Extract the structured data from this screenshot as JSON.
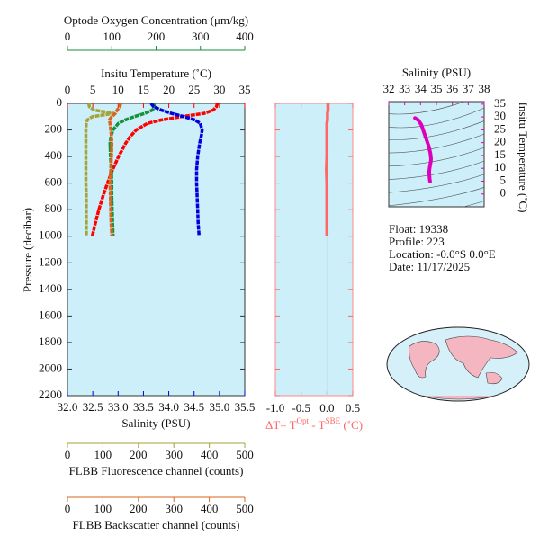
{
  "chart_data": [
    {
      "type": "profile",
      "y_label": "Pressure (decibar)",
      "ylim": [
        2200,
        0
      ],
      "yticks": [
        0,
        200,
        400,
        600,
        800,
        1000,
        1200,
        1400,
        1600,
        1800,
        2000,
        2200
      ],
      "pressure": [
        0,
        25,
        50,
        75,
        100,
        125,
        150,
        200,
        250,
        300,
        400,
        500,
        600,
        700,
        800,
        900,
        1000
      ],
      "series": [
        {
          "name": "Insitu Temperature (˚C)",
          "color": "#ff0000",
          "xlim": [
            0,
            35
          ],
          "xticks": [
            0,
            5,
            10,
            15,
            20,
            25,
            30,
            35
          ],
          "values": [
            29.6,
            29.4,
            28.8,
            27.0,
            22.5,
            18.5,
            15.8,
            13.6,
            12.4,
            11.5,
            10.1,
            8.9,
            7.9,
            7.0,
            6.2,
            5.5,
            4.9
          ]
        },
        {
          "name": "Optode Oxygen Concentration (μm/kg)",
          "color": "#14913a",
          "xlim": [
            0,
            400
          ],
          "xticks": [
            0,
            100,
            200,
            300,
            400
          ],
          "values": [
            195,
            196,
            192,
            175,
            150,
            130,
            115,
            103,
            98,
            96,
            97,
            99,
            100,
            100,
            101,
            102,
            103
          ]
        },
        {
          "name": "Salinity (PSU)",
          "color": "#0000dd",
          "xlim": [
            32,
            35.5
          ],
          "xticks": [
            {
              "value": 32,
              "label": "32.0"
            },
            32.5,
            {
              "value": 33,
              "label": "33.0"
            },
            33.5,
            {
              "value": 34,
              "label": "34.0"
            },
            34.5,
            {
              "value": 35,
              "label": "35.0"
            },
            35.5
          ],
          "values": [
            33.65,
            33.7,
            33.85,
            34.05,
            34.3,
            34.52,
            34.62,
            34.66,
            34.64,
            34.61,
            34.57,
            34.55,
            34.55,
            34.56,
            34.57,
            34.58,
            34.6
          ]
        },
        {
          "name": "FLBB Fluorescence channel (counts)",
          "color": "#a3a33a",
          "xlim": [
            0,
            500
          ],
          "xticks": [
            0,
            100,
            200,
            300,
            400,
            500
          ],
          "values": [
            60,
            62,
            75,
            130,
            70,
            56,
            53,
            52,
            52,
            52,
            52,
            52,
            52,
            53,
            53,
            53,
            53
          ]
        },
        {
          "name": "FLBB Backscatter channel (counts)",
          "color": "#d9661f",
          "xlim": [
            0,
            500
          ],
          "xticks": [
            0,
            100,
            200,
            300,
            400,
            500
          ],
          "values": [
            150,
            148,
            140,
            135,
            125,
            118,
            120,
            122,
            124,
            125,
            124,
            122,
            120,
            121,
            122,
            123,
            125
          ]
        }
      ]
    },
    {
      "type": "delta",
      "color": "#ff6666",
      "x_label": [
        "ΔT= T",
        "Opt",
        " - T",
        "SBE",
        " (˚C)"
      ],
      "xlim": [
        -1,
        0.5
      ],
      "xticks": [
        {
          "value": -1,
          "label": "-1.0"
        },
        -0.5,
        {
          "value": 0,
          "label": "0.0"
        },
        0.5
      ],
      "values": [
        0.02,
        0.02,
        0.02,
        0.01,
        0.01,
        0.01,
        0.0,
        0.0,
        0.0,
        0.0,
        0.0,
        -0.01,
        0.0,
        0.0,
        0.0,
        0.0,
        0.0
      ]
    },
    {
      "type": "ts",
      "color": "#dd00bb",
      "x_label": "Salinity (PSU)",
      "y_label": "Insitu Temperature (˚C)",
      "xlim": [
        32,
        38
      ],
      "xticks": [
        32,
        33,
        34,
        35,
        36,
        37,
        38
      ],
      "ylim": [
        -5,
        36
      ],
      "yticks": [
        0,
        5,
        10,
        15,
        20,
        25,
        30,
        35
      ]
    }
  ],
  "info": [
    "Float:  19338",
    "Profile:  223",
    "Location:  -0.0°S   0.0°E",
    "Date:  11/17/2025"
  ]
}
